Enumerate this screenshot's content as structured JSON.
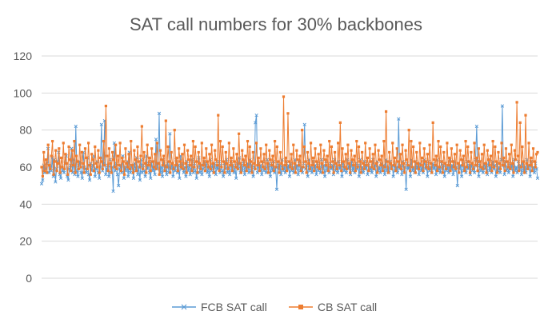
{
  "chart_data": {
    "type": "line",
    "title": "SAT call numbers for 30% backbones",
    "xlabel": "",
    "ylabel": "",
    "ylim": [
      0,
      120
    ],
    "yticks": [
      "0",
      "20",
      "40",
      "60",
      "80",
      "100",
      "120"
    ],
    "grid": true,
    "legend_position": "bottom",
    "series": [
      {
        "name": "FCB SAT call",
        "color": "#5b9bd5",
        "marker": "x",
        "values": [
          51,
          53,
          61,
          57,
          59,
          62,
          70,
          57,
          60,
          58,
          65,
          55,
          64,
          52,
          59,
          63,
          68,
          56,
          54,
          60,
          58,
          57,
          62,
          66,
          55,
          53,
          59,
          61,
          70,
          57,
          64,
          56,
          82,
          58,
          55,
          61,
          63,
          57,
          54,
          68,
          60,
          59,
          57,
          65,
          56,
          53,
          62,
          58,
          61,
          66,
          55,
          59,
          63,
          57,
          54,
          60,
          83,
          58,
          62,
          85,
          56,
          59,
          61,
          55,
          64,
          57,
          60,
          47,
          73,
          58,
          62,
          56,
          50,
          59,
          61,
          57,
          66,
          54,
          60,
          58,
          63,
          55,
          68,
          57,
          61,
          59,
          54,
          62,
          58,
          65,
          56,
          60,
          53,
          64,
          57,
          61,
          58,
          55,
          66,
          59,
          62,
          57,
          54,
          63,
          58,
          60,
          56,
          75,
          59,
          62,
          89,
          57,
          60,
          55,
          64,
          58,
          61,
          56,
          63,
          57,
          78,
          59,
          62,
          55,
          60,
          58,
          64,
          57,
          61,
          54,
          66,
          59,
          62,
          57,
          60,
          55,
          63,
          58,
          61,
          56,
          59,
          64,
          57,
          62,
          58,
          54,
          60,
          65,
          57,
          61,
          56,
          59,
          63,
          58,
          62,
          57,
          60,
          55,
          64,
          58,
          61,
          57,
          62,
          56,
          60,
          59,
          63,
          57,
          61,
          58,
          55,
          62,
          59,
          64,
          57,
          60,
          56,
          63,
          58,
          61,
          57,
          60,
          54,
          62,
          59,
          65,
          57,
          61,
          58,
          63,
          56,
          60,
          59,
          62,
          57,
          64,
          58,
          61,
          55,
          60,
          84,
          88,
          57,
          62,
          59,
          61,
          56,
          63,
          58,
          60,
          57,
          64,
          59,
          62,
          55,
          61,
          58,
          63,
          57,
          60,
          48,
          62,
          59,
          61,
          56,
          64,
          58,
          60,
          57,
          63,
          59,
          61,
          55,
          62,
          58,
          60,
          57,
          64,
          59,
          61,
          56,
          63,
          58,
          60,
          57,
          62,
          83,
          59,
          61,
          55,
          64,
          58,
          60,
          57,
          63,
          59,
          61,
          56,
          62,
          58,
          60,
          57,
          64,
          59,
          61,
          55,
          63,
          58,
          60,
          57,
          62,
          59,
          61,
          56,
          64,
          58,
          60,
          57,
          63,
          59,
          61,
          55,
          62,
          58,
          60,
          57,
          64,
          59,
          61,
          56,
          63,
          58,
          60,
          57,
          62,
          59,
          61,
          55,
          64,
          58,
          60,
          57,
          63,
          59,
          61,
          56,
          62,
          58,
          60,
          57,
          64,
          59,
          61,
          55,
          63,
          58,
          60,
          57,
          62,
          59,
          61,
          56,
          64,
          58,
          60,
          57,
          63,
          59,
          61,
          55,
          62,
          58,
          60,
          57,
          86,
          59,
          61,
          56,
          63,
          58,
          60,
          48,
          62,
          59,
          61,
          55,
          64,
          58,
          60,
          57,
          63,
          59,
          61,
          56,
          62,
          58,
          60,
          57,
          64,
          59,
          61,
          55,
          63,
          58,
          60,
          57,
          62,
          59,
          61,
          56,
          64,
          58,
          60,
          57,
          63,
          59,
          61,
          55,
          62,
          58,
          60,
          57,
          64,
          59,
          61,
          56,
          63,
          58,
          60,
          50,
          62,
          59,
          61,
          55,
          64,
          58,
          60,
          57,
          63,
          59,
          61,
          56,
          62,
          58,
          60,
          57,
          64,
          82,
          61,
          55,
          63,
          58,
          60,
          57,
          62,
          59,
          61,
          56,
          64,
          58,
          60,
          57,
          63,
          59,
          61,
          55,
          62,
          58,
          60,
          57,
          64,
          93,
          61,
          56,
          63,
          58,
          60,
          57,
          62,
          59,
          61,
          55,
          64,
          58,
          60,
          57,
          63,
          59,
          61,
          56,
          62,
          58,
          60,
          57,
          64,
          59,
          61,
          55,
          63,
          58,
          60,
          57,
          62,
          59,
          54
        ]
      },
      {
        "name": "CB SAT call",
        "color": "#ed7d31",
        "marker": "square",
        "values": [
          60,
          55,
          68,
          58,
          64,
          57,
          72,
          61,
          59,
          66,
          74,
          56,
          63,
          69,
          58,
          62,
          70,
          57,
          65,
          60,
          73,
          59,
          67,
          62,
          56,
          71,
          64,
          58,
          69,
          61,
          74,
          57,
          66,
          63,
          59,
          72,
          60,
          68,
          62,
          57,
          70,
          65,
          59,
          73,
          61,
          56,
          67,
          64,
          58,
          71,
          62,
          60,
          69,
          57,
          65,
          63,
          59,
          74,
          61,
          93,
          66,
          58,
          70,
          62,
          57,
          68,
          64,
          60,
          72,
          59,
          66,
          61,
          73,
          58,
          65,
          63,
          56,
          70,
          62,
          60,
          67,
          59,
          74,
          61,
          57,
          69,
          64,
          58,
          71,
          63,
          60,
          66,
          82,
          59,
          68,
          62,
          57,
          72,
          61,
          65,
          58,
          70,
          63,
          60,
          67,
          59,
          73,
          62,
          56,
          69,
          64,
          61,
          66,
          58,
          85,
          60,
          71,
          63,
          57,
          68,
          62,
          59,
          80,
          61,
          65,
          58,
          70,
          63,
          60,
          67,
          59,
          72,
          62,
          57,
          69,
          64,
          61,
          66,
          58,
          74,
          60,
          71,
          63,
          57,
          68,
          62,
          59,
          73,
          61,
          65,
          58,
          70,
          63,
          60,
          67,
          59,
          72,
          62,
          57,
          69,
          64,
          61,
          88,
          58,
          74,
          60,
          71,
          63,
          57,
          68,
          62,
          59,
          73,
          61,
          65,
          58,
          70,
          63,
          60,
          67,
          59,
          78,
          62,
          57,
          69,
          64,
          61,
          66,
          58,
          74,
          60,
          71,
          63,
          57,
          68,
          62,
          59,
          73,
          61,
          65,
          58,
          70,
          63,
          60,
          67,
          59,
          72,
          62,
          57,
          69,
          64,
          61,
          66,
          58,
          74,
          60,
          71,
          63,
          57,
          68,
          62,
          59,
          98,
          61,
          65,
          58,
          89,
          63,
          60,
          67,
          59,
          72,
          62,
          57,
          69,
          64,
          61,
          66,
          58,
          80,
          60,
          71,
          63,
          57,
          68,
          62,
          59,
          73,
          61,
          65,
          58,
          70,
          63,
          60,
          67,
          59,
          72,
          62,
          57,
          69,
          64,
          61,
          66,
          58,
          74,
          60,
          71,
          63,
          57,
          68,
          62,
          59,
          73,
          61,
          84,
          58,
          70,
          63,
          60,
          67,
          59,
          72,
          62,
          57,
          69,
          64,
          61,
          66,
          58,
          74,
          60,
          71,
          63,
          57,
          68,
          62,
          59,
          73,
          61,
          65,
          58,
          70,
          63,
          60,
          67,
          59,
          72,
          62,
          57,
          69,
          64,
          61,
          66,
          58,
          74,
          60,
          90,
          63,
          57,
          68,
          62,
          59,
          73,
          61,
          65,
          58,
          70,
          63,
          60,
          67,
          59,
          72,
          62,
          57,
          69,
          64,
          61,
          80,
          58,
          74,
          60,
          71,
          63,
          57,
          68,
          62,
          59,
          73,
          61,
          65,
          58,
          70,
          63,
          60,
          67,
          59,
          72,
          62,
          57,
          84,
          64,
          61,
          66,
          58,
          74,
          60,
          71,
          63,
          57,
          68,
          62,
          59,
          73,
          61,
          65,
          58,
          70,
          63,
          60,
          67,
          59,
          72,
          62,
          57,
          69,
          64,
          61,
          66,
          58,
          74,
          60,
          71,
          63,
          57,
          68,
          62,
          59,
          73,
          61,
          65,
          58,
          70,
          63,
          60,
          67,
          59,
          72,
          62,
          57,
          69,
          64,
          61,
          66,
          58,
          74,
          60,
          71,
          63,
          57,
          68,
          62,
          59,
          73,
          61,
          65,
          58,
          70,
          63,
          60,
          67,
          59,
          72,
          62,
          57,
          69,
          64,
          95,
          66,
          58,
          84,
          60,
          71,
          63,
          57,
          88,
          62,
          59,
          73,
          61,
          65,
          58,
          70,
          63,
          60,
          67,
          68
        ]
      }
    ]
  }
}
